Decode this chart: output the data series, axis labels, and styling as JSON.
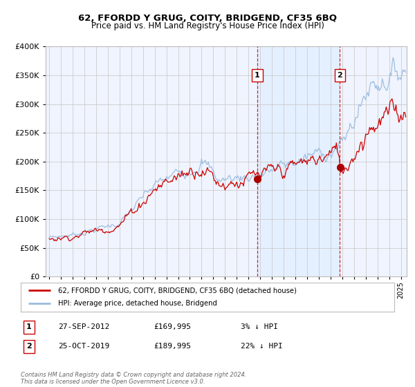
{
  "title": "62, FFORDD Y GRUG, COITY, BRIDGEND, CF35 6BQ",
  "subtitle": "Price paid vs. HM Land Registry's House Price Index (HPI)",
  "legend_entry1": "62, FFORDD Y GRUG, COITY, BRIDGEND, CF35 6BQ (detached house)",
  "legend_entry2": "HPI: Average price, detached house, Bridgend",
  "annotation1_date": "27-SEP-2012",
  "annotation1_price": "£169,995",
  "annotation1_hpi": "3% ↓ HPI",
  "annotation2_date": "25-OCT-2019",
  "annotation2_price": "£189,995",
  "annotation2_hpi": "22% ↓ HPI",
  "sale1_year": 2012.75,
  "sale1_value": 169995,
  "sale2_year": 2019.8,
  "sale2_value": 189995,
  "line1_color": "#cc0000",
  "line2_color": "#99bbdd",
  "shade_color": "#ddeeff",
  "marker_color": "#aa0000",
  "vline_color": "#cc0000",
  "grid_color": "#cccccc",
  "background_color": "#f0f4ff",
  "ylim_max": 400000,
  "footnote": "Contains HM Land Registry data © Crown copyright and database right 2024.\nThis data is licensed under the Open Government Licence v3.0."
}
